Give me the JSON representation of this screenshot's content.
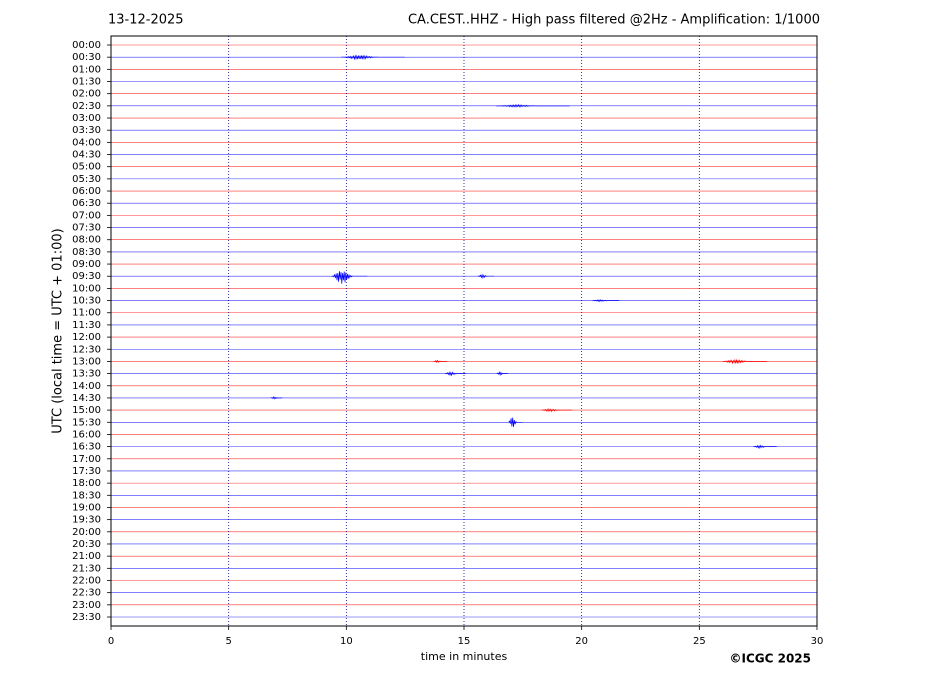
{
  "chart_data": {
    "type": "helicorder",
    "date": "13-12-2025",
    "title": "CA.CEST..HHZ - High pass filtered @2Hz - Amplification: 1/1000",
    "ylabel": "UTC (local time = UTC + 01:00)",
    "xlabel": "time in minutes",
    "credit": "©ICGC 2025",
    "categories": [
      "00:00",
      "00:30",
      "01:00",
      "01:30",
      "02:00",
      "02:30",
      "03:00",
      "03:30",
      "04:00",
      "04:30",
      "05:00",
      "05:30",
      "06:00",
      "06:30",
      "07:00",
      "07:30",
      "08:00",
      "08:30",
      "09:00",
      "09:30",
      "10:00",
      "10:30",
      "11:00",
      "11:30",
      "12:00",
      "12:30",
      "13:00",
      "13:30",
      "14:00",
      "14:30",
      "15:00",
      "15:30",
      "16:00",
      "16:30",
      "17:00",
      "17:30",
      "18:00",
      "18:30",
      "19:00",
      "19:30",
      "20:00",
      "20:30",
      "21:00",
      "21:30",
      "22:00",
      "22:30",
      "23:00",
      "23:30"
    ],
    "colors": [
      "#ff0000",
      "#0000ff"
    ],
    "xlim": [
      0,
      30
    ],
    "xticks": [
      0,
      5,
      10,
      15,
      20,
      25,
      30
    ],
    "grid": true,
    "events": [
      {
        "row": 1,
        "start": 9.8,
        "end": 12.5,
        "peak": 0.15
      },
      {
        "row": 5,
        "start": 16.4,
        "end": 19.5,
        "peak": 0.08
      },
      {
        "row": 19,
        "start": 9.4,
        "end": 10.9,
        "peak": 0.6
      },
      {
        "row": 19,
        "start": 15.6,
        "end": 16.3,
        "peak": 0.15
      },
      {
        "row": 21,
        "start": 20.5,
        "end": 21.6,
        "peak": 0.08
      },
      {
        "row": 26,
        "start": 13.7,
        "end": 14.3,
        "peak": 0.1
      },
      {
        "row": 26,
        "start": 26.0,
        "end": 27.9,
        "peak": 0.15
      },
      {
        "row": 27,
        "start": 14.2,
        "end": 15.1,
        "peak": 0.15
      },
      {
        "row": 27,
        "start": 16.4,
        "end": 16.9,
        "peak": 0.15
      },
      {
        "row": 29,
        "start": 6.8,
        "end": 7.3,
        "peak": 0.1
      },
      {
        "row": 30,
        "start": 18.3,
        "end": 19.6,
        "peak": 0.12
      },
      {
        "row": 31,
        "start": 16.9,
        "end": 17.5,
        "peak": 0.5
      },
      {
        "row": 33,
        "start": 27.3,
        "end": 28.3,
        "peak": 0.12
      }
    ]
  }
}
